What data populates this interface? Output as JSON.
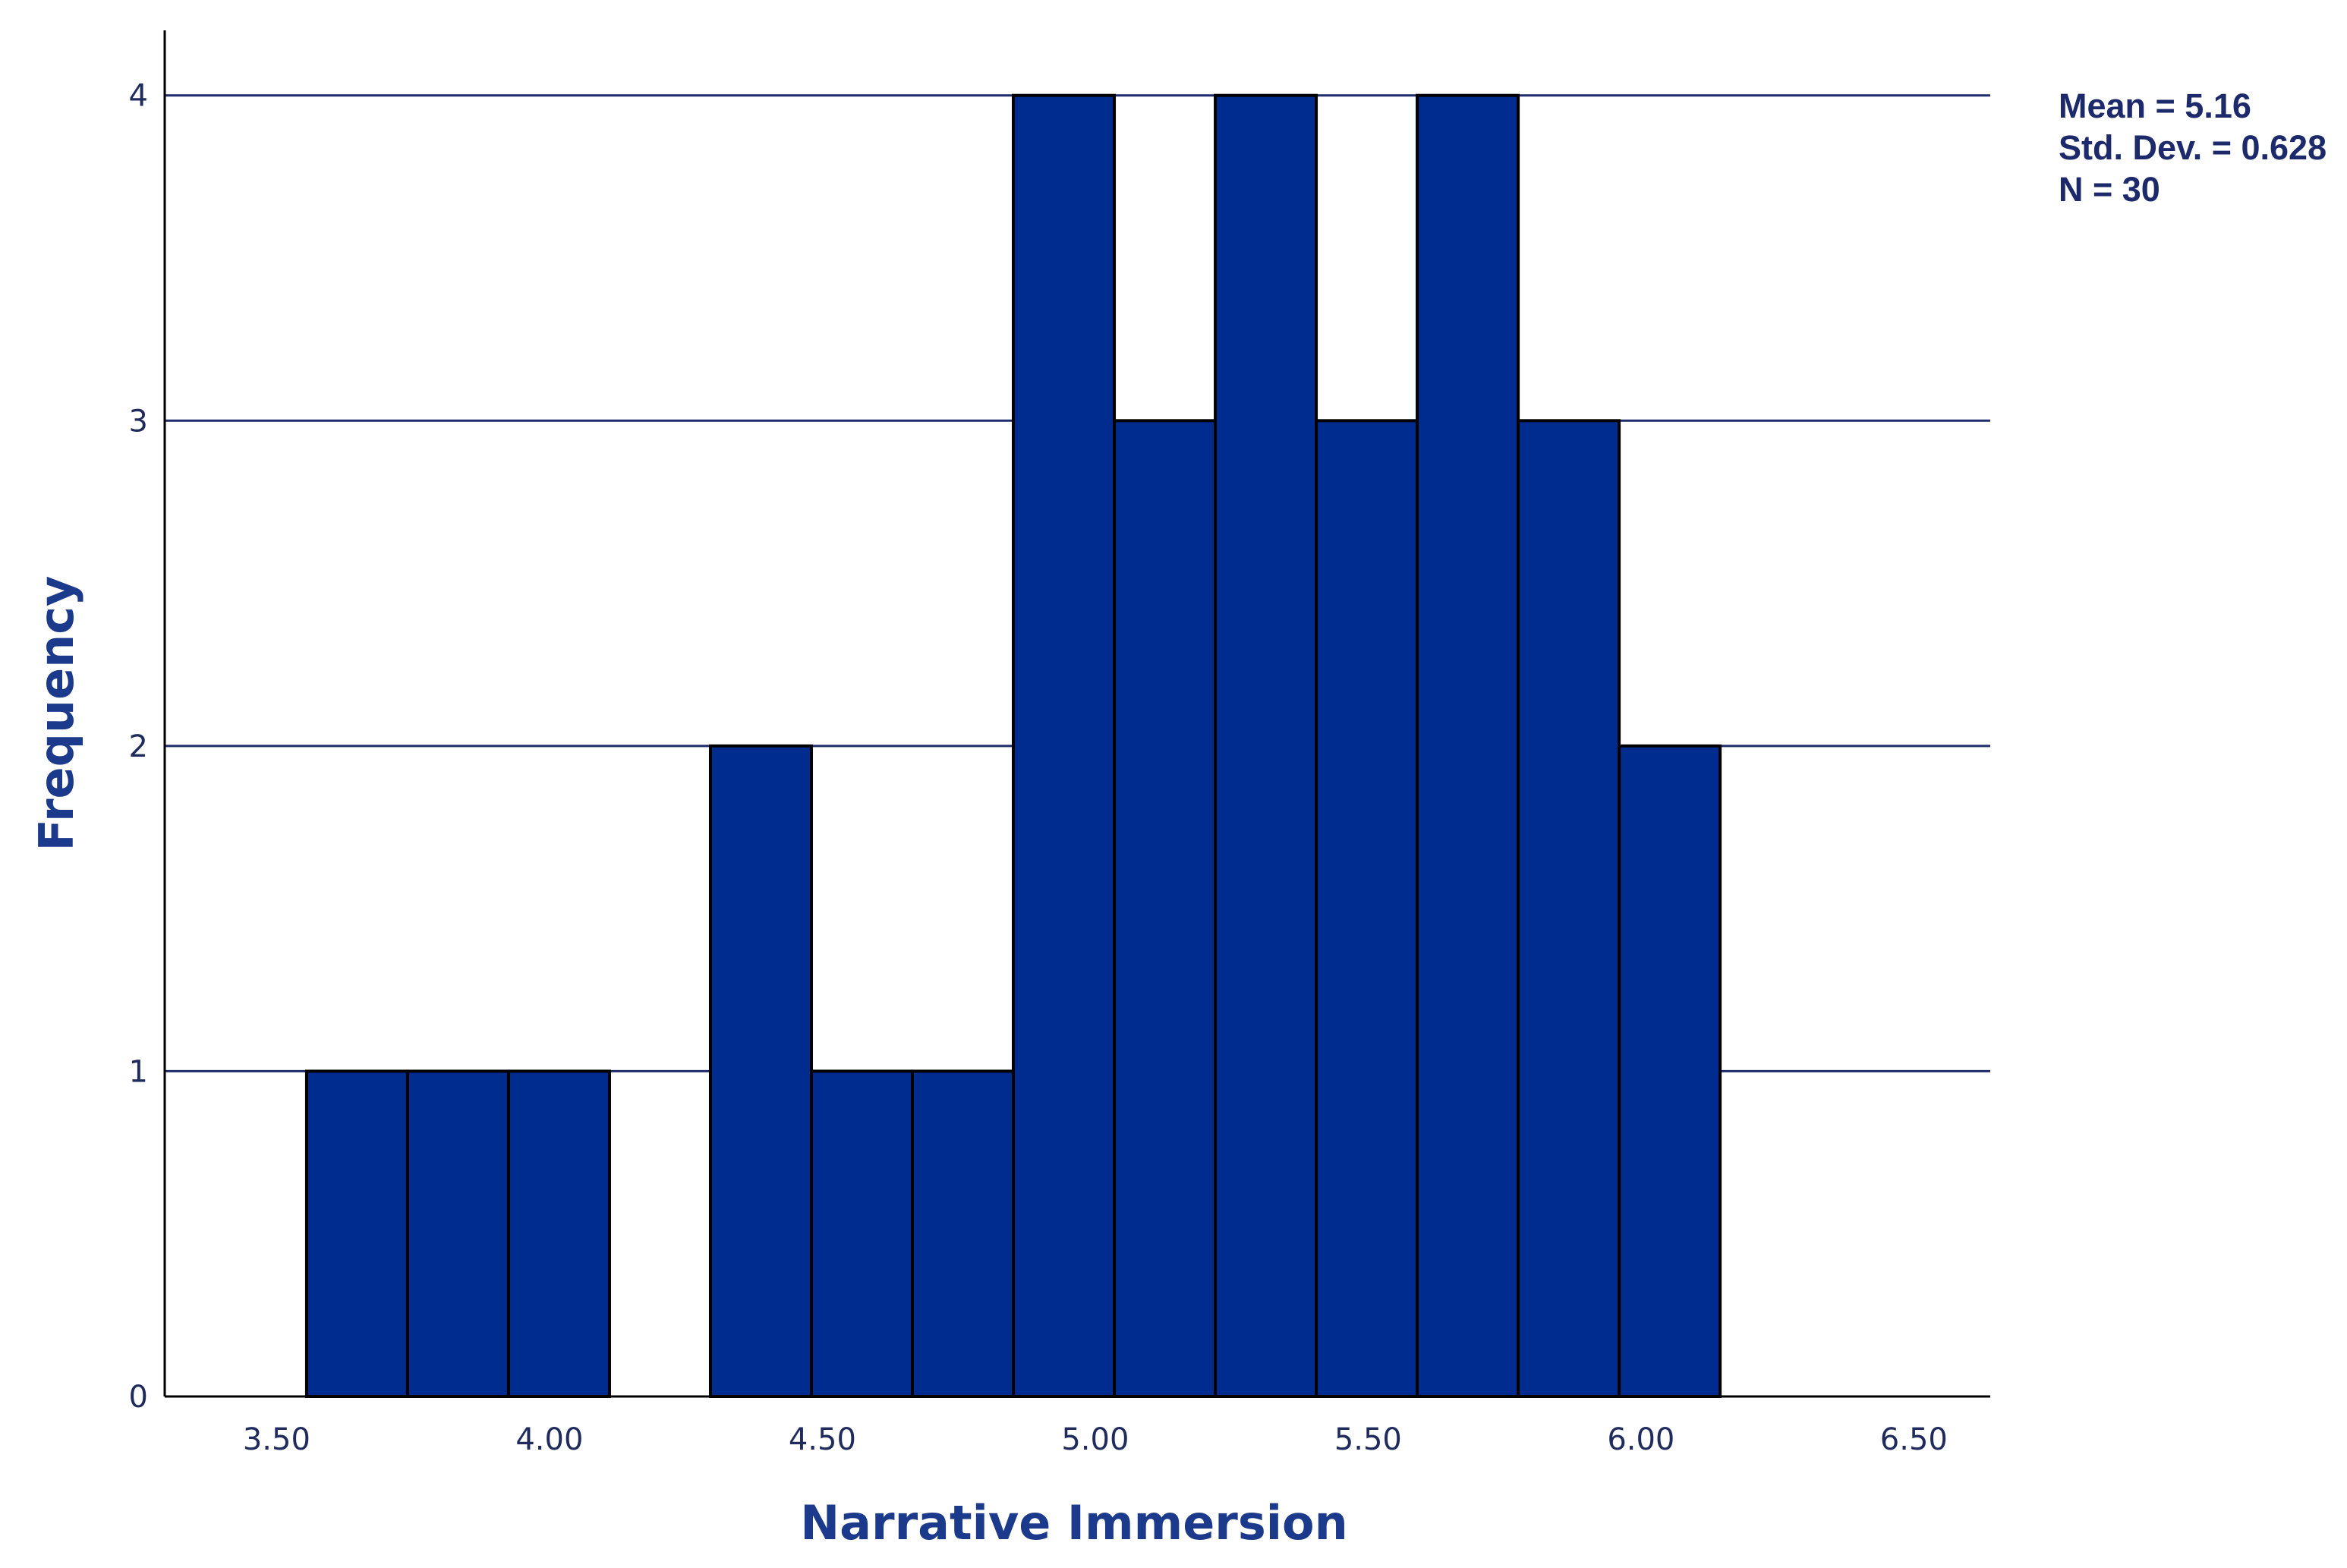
{
  "chart_data": {
    "type": "bar",
    "subtype": "histogram",
    "xlabel": "Narrative Immersion",
    "ylabel": "Frequency",
    "x_ticks": [
      "3.50",
      "4.00",
      "4.50",
      "5.00",
      "5.50",
      "6.00",
      "6.50"
    ],
    "x_tick_values": [
      3.5,
      4.0,
      4.5,
      5.0,
      5.5,
      6.0,
      6.5
    ],
    "y_ticks": [
      "0",
      "1",
      "2",
      "3",
      "4"
    ],
    "y_tick_values": [
      0,
      1,
      2,
      3,
      4
    ],
    "xlim": [
      3.295,
      6.64
    ],
    "ylim": [
      0,
      4.2
    ],
    "grid": "horizontal",
    "bin_width": 0.185,
    "bins": [
      {
        "start": 3.555,
        "end": 3.74,
        "count": 1
      },
      {
        "start": 3.74,
        "end": 3.925,
        "count": 1
      },
      {
        "start": 3.925,
        "end": 4.11,
        "count": 1
      },
      {
        "start": 4.11,
        "end": 4.295,
        "count": 0
      },
      {
        "start": 4.295,
        "end": 4.48,
        "count": 2
      },
      {
        "start": 4.48,
        "end": 4.665,
        "count": 1
      },
      {
        "start": 4.665,
        "end": 4.85,
        "count": 1
      },
      {
        "start": 4.85,
        "end": 5.035,
        "count": 4
      },
      {
        "start": 5.035,
        "end": 5.22,
        "count": 3
      },
      {
        "start": 5.22,
        "end": 5.405,
        "count": 4
      },
      {
        "start": 5.405,
        "end": 5.59,
        "count": 3
      },
      {
        "start": 5.59,
        "end": 5.775,
        "count": 4
      },
      {
        "start": 5.775,
        "end": 5.96,
        "count": 3
      },
      {
        "start": 5.96,
        "end": 6.145,
        "count": 2
      }
    ],
    "bar_color": "#002b8f",
    "bar_edge_color": "#000000",
    "stats": {
      "mean": "Mean = 5.16",
      "std_dev": "Std. Dev. = 0.628",
      "n": "N = 30"
    }
  }
}
